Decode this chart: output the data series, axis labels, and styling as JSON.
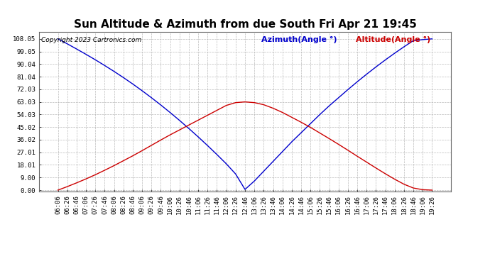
{
  "title": "Sun Altitude & Azimuth from due South Fri Apr 21 19:45",
  "copyright": "Copyright 2023 Cartronics.com",
  "legend_azimuth": "Azimuth(Angle °)",
  "legend_altitude": "Altitude(Angle °)",
  "azimuth_color": "#0000cc",
  "altitude_color": "#cc0000",
  "background_color": "#ffffff",
  "grid_color": "#aaaaaa",
  "yticks": [
    0.0,
    9.0,
    18.01,
    27.01,
    36.02,
    45.02,
    54.03,
    63.03,
    72.03,
    81.04,
    90.04,
    99.05,
    108.05
  ],
  "ytick_labels": [
    "0.00",
    "9.00",
    "18.01",
    "27.01",
    "36.02",
    "45.02",
    "54.03",
    "63.03",
    "72.03",
    "81.04",
    "90.04",
    "99.05",
    "108.05"
  ],
  "ylim": [
    -1.0,
    113.0
  ],
  "time_labels": [
    "06:06",
    "06:26",
    "06:46",
    "07:06",
    "07:26",
    "07:46",
    "08:06",
    "08:26",
    "08:46",
    "09:06",
    "09:26",
    "09:46",
    "10:06",
    "10:26",
    "10:46",
    "11:06",
    "11:26",
    "11:46",
    "12:06",
    "12:26",
    "12:46",
    "13:06",
    "13:26",
    "13:46",
    "14:06",
    "14:26",
    "14:46",
    "15:06",
    "15:26",
    "15:46",
    "16:06",
    "16:26",
    "16:46",
    "17:06",
    "17:26",
    "17:46",
    "18:06",
    "18:26",
    "18:46",
    "19:06",
    "19:26"
  ],
  "azimuth_values": [
    108.05,
    104.5,
    100.8,
    97.0,
    93.1,
    89.0,
    84.8,
    80.4,
    75.8,
    71.0,
    66.0,
    60.8,
    55.4,
    49.8,
    44.0,
    38.0,
    31.8,
    25.4,
    18.8,
    11.5,
    0.5,
    6.5,
    13.5,
    20.5,
    27.5,
    34.5,
    41.0,
    47.5,
    54.0,
    60.2,
    66.0,
    71.8,
    77.4,
    82.8,
    88.0,
    93.0,
    97.8,
    102.4,
    106.8,
    107.5,
    108.05
  ],
  "altitude_values": [
    0.0,
    2.5,
    5.2,
    8.0,
    11.0,
    14.2,
    17.5,
    21.0,
    24.5,
    28.2,
    32.0,
    35.8,
    39.5,
    43.0,
    46.5,
    50.0,
    53.5,
    57.0,
    60.5,
    62.5,
    63.03,
    62.5,
    61.0,
    58.5,
    55.5,
    52.0,
    48.5,
    44.8,
    40.8,
    36.8,
    32.7,
    28.5,
    24.2,
    20.0,
    15.8,
    11.7,
    7.8,
    4.2,
    1.5,
    0.3,
    0.0
  ],
  "figsize": [
    6.9,
    3.75
  ],
  "dpi": 100,
  "title_fontsize": 11,
  "tick_fontsize": 6.5,
  "legend_fontsize": 8,
  "copyright_fontsize": 6.5
}
